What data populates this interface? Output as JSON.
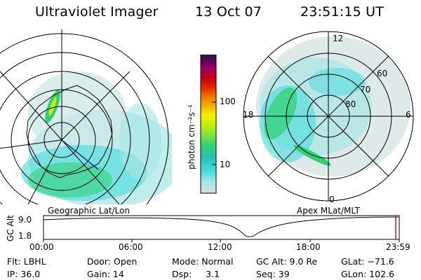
{
  "header": {
    "instrument": "Ultraviolet Imager",
    "date": "13 Oct 07",
    "time": "23:51:15 UT"
  },
  "left_panel": {
    "label": "Geographic Lat/Lon"
  },
  "right_panel": {
    "label": "Apex MLat/MLT",
    "mlt_labels": [
      "12",
      "18",
      "6",
      "0"
    ],
    "mlat_labels": [
      "60",
      "70",
      "80"
    ]
  },
  "colorbar": {
    "unit_label": "photon cm⁻²s⁻¹",
    "ticks": [
      "100",
      "10"
    ],
    "colors": [
      "#d6dcdc",
      "#a9e6e6",
      "#46dcdc",
      "#26c0b0",
      "#30d070",
      "#80e040",
      "#c8f000",
      "#f0f000",
      "#f0b000",
      "#f07000",
      "#e02000",
      "#c00018",
      "#a00060",
      "#600060",
      "#281e3c"
    ]
  },
  "timeline": {
    "axis_label": "GC Alt",
    "y_ticks": [
      "9.0",
      "1.8"
    ],
    "x_ticks": [
      "00:00",
      "06:00",
      "12:00",
      "18:00",
      "23:59"
    ],
    "current_marker_color": "#d01010"
  },
  "info": {
    "filter": "Flt: LBHL",
    "ip": "IP: 36.0",
    "door": "Door: Open",
    "gain": "Gain: 14",
    "mode": "Mode: Normal",
    "dsp": "Dsp:     3.1",
    "gc_alt": "GC Alt: 9.0 Re",
    "seq": "Seq: 39",
    "glat": "GLat: −71.6",
    "glon": "GLon: 102.6"
  }
}
